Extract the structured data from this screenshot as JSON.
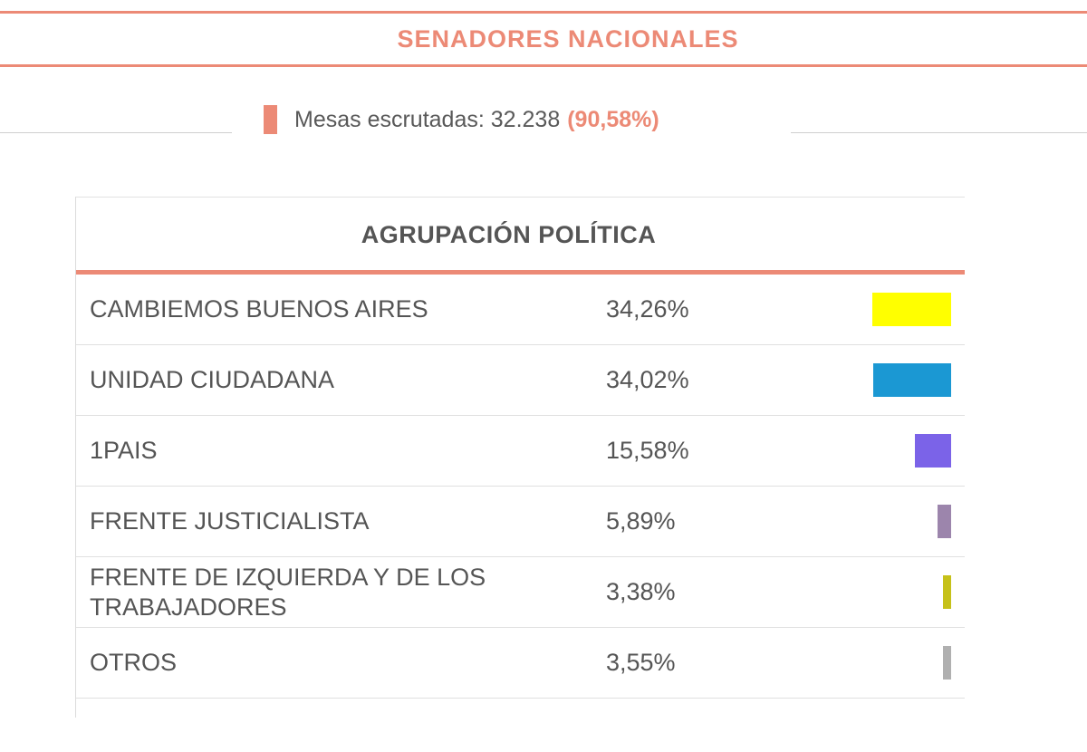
{
  "section": {
    "title": "SENADORES NACIONALES",
    "accent_color": "#ec8a76"
  },
  "status": {
    "label": "Mesas escrutadas: 32.238",
    "percent": "(90,58%)"
  },
  "table": {
    "header": "AGRUPACIÓN POLÍTICA",
    "rows": [
      {
        "party": "CAMBIEMOS BUENOS AIRES",
        "percent": "34,26%",
        "value": 34.26,
        "color": "#ffff00"
      },
      {
        "party": "UNIDAD CIUDADANA",
        "percent": "34,02%",
        "value": 34.02,
        "color": "#1b98d3"
      },
      {
        "party": "1PAIS",
        "percent": "15,58%",
        "value": 15.58,
        "color": "#7b63e8"
      },
      {
        "party": "FRENTE JUSTICIALISTA",
        "percent": "5,89%",
        "value": 5.89,
        "color": "#9c85ac"
      },
      {
        "party": "FRENTE DE IZQUIERDA Y DE LOS TRABAJADORES",
        "percent": "3,38%",
        "value": 3.38,
        "color": "#c6c11a"
      },
      {
        "party": "OTROS",
        "percent": "3,55%",
        "value": 3.55,
        "color": "#b0b0b0"
      }
    ]
  }
}
